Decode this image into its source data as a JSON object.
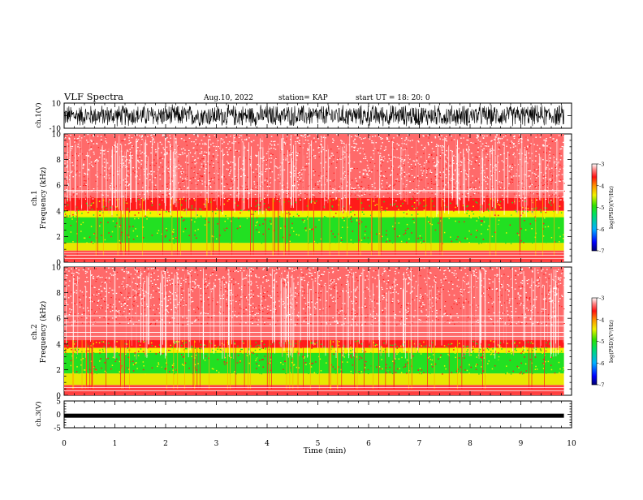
{
  "header": {
    "title": "VLF Spectra",
    "date": "Aug.10, 2022",
    "station": "station= KAP",
    "start": "start  UT  =   18: 20: 0"
  },
  "chart_data": [
    {
      "type": "line",
      "panel": "ch1-waveform",
      "ylabel": "ch.1(V)",
      "ylim": [
        -10,
        10
      ],
      "yticks": [
        "10",
        "-10"
      ],
      "xlim": [
        0,
        9.85
      ]
    },
    {
      "type": "heatmap",
      "panel": "ch1-spectrogram",
      "ylabel": "ch.1 Frequency (kHz)",
      "ylim": [
        0,
        10
      ],
      "yticks": [
        "0",
        "2",
        "4",
        "6",
        "8",
        "10"
      ],
      "xlim": [
        0,
        9.85
      ],
      "colorbar": {
        "label": "log(PSD)(V²/Hz)",
        "range": [
          -7,
          -3
        ],
        "ticks": [
          "-3",
          "-4",
          "-5",
          "-6",
          "-7"
        ]
      }
    },
    {
      "type": "heatmap",
      "panel": "ch2-spectrogram",
      "ylabel": "ch.2 Frequency (kHz)",
      "ylim": [
        0,
        10
      ],
      "yticks": [
        "0",
        "2",
        "4",
        "6",
        "8",
        "10"
      ],
      "xlim": [
        0,
        9.85
      ],
      "colorbar": {
        "label": "log(PSD)(V²/Hz)",
        "range": [
          -7,
          -3
        ],
        "ticks": [
          "-3",
          "-4",
          "-5",
          "-6",
          "-7"
        ]
      }
    },
    {
      "type": "line",
      "panel": "ch3-waveform",
      "ylabel": "ch.3(V)",
      "ylim": [
        -5,
        5
      ],
      "yticks": [
        "5",
        "0",
        "-5"
      ],
      "xlim": [
        0,
        9.85
      ]
    }
  ],
  "xaxis": {
    "label": "Time  (min)",
    "range": [
      0,
      10
    ],
    "ticks": [
      "0",
      "1",
      "2",
      "3",
      "4",
      "5",
      "6",
      "7",
      "8",
      "9",
      "10"
    ]
  },
  "colors": {
    "spec_red": "#ff1a1a",
    "spec_yellow": "#f2f200",
    "spec_green": "#22e022",
    "trace": "#000000"
  }
}
